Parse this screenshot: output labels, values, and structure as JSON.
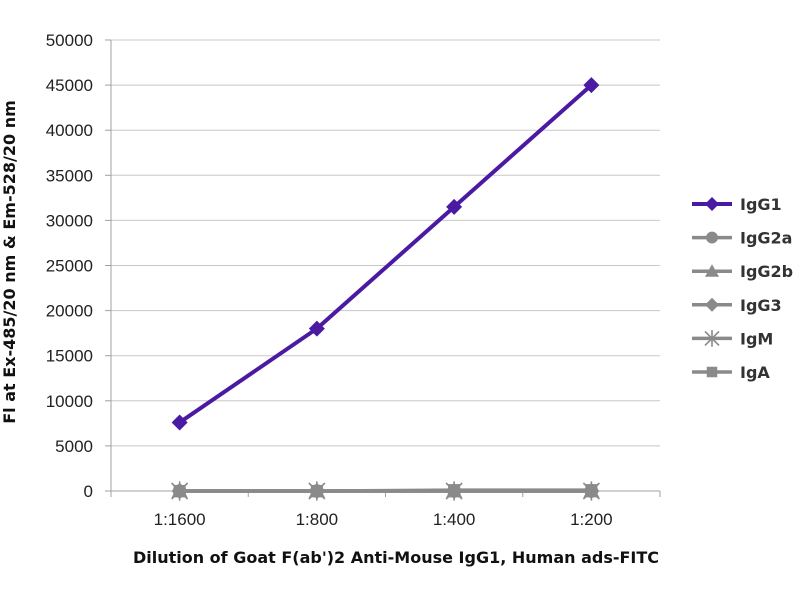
{
  "chart_data": {
    "type": "line",
    "categories": [
      "1:1600",
      "1:800",
      "1:400",
      "1:200"
    ],
    "xlabel": "Dilution of Goat F(ab')2 Anti-Mouse IgG1, Human ads-FITC",
    "ylabel": "Fl at Ex-485/20 nm & Em-528/20 nm",
    "ylim": [
      0,
      50000
    ],
    "yticks": [
      0,
      5000,
      10000,
      15000,
      20000,
      25000,
      30000,
      35000,
      40000,
      45000,
      50000
    ],
    "grid": "horizontal",
    "legend_position": "right",
    "series": [
      {
        "name": "IgG1",
        "marker": "diamond",
        "color": "#4b1aa3",
        "values": [
          7600,
          18000,
          31500,
          45000
        ]
      },
      {
        "name": "IgG2a",
        "marker": "circle",
        "color": "#8a8a8a",
        "values": [
          0,
          0,
          0,
          0
        ]
      },
      {
        "name": "IgG2b",
        "marker": "triangle",
        "color": "#8a8a8a",
        "values": [
          0,
          0,
          0,
          0
        ]
      },
      {
        "name": "IgG3",
        "marker": "diamond",
        "color": "#8a8a8a",
        "values": [
          0,
          0,
          0,
          0
        ]
      },
      {
        "name": "IgM",
        "marker": "asterisk",
        "color": "#8a8a8a",
        "values": [
          0,
          0,
          0,
          0
        ]
      },
      {
        "name": "IgA",
        "marker": "square",
        "color": "#8a8a8a",
        "values": [
          0,
          0,
          100,
          100
        ]
      }
    ]
  }
}
